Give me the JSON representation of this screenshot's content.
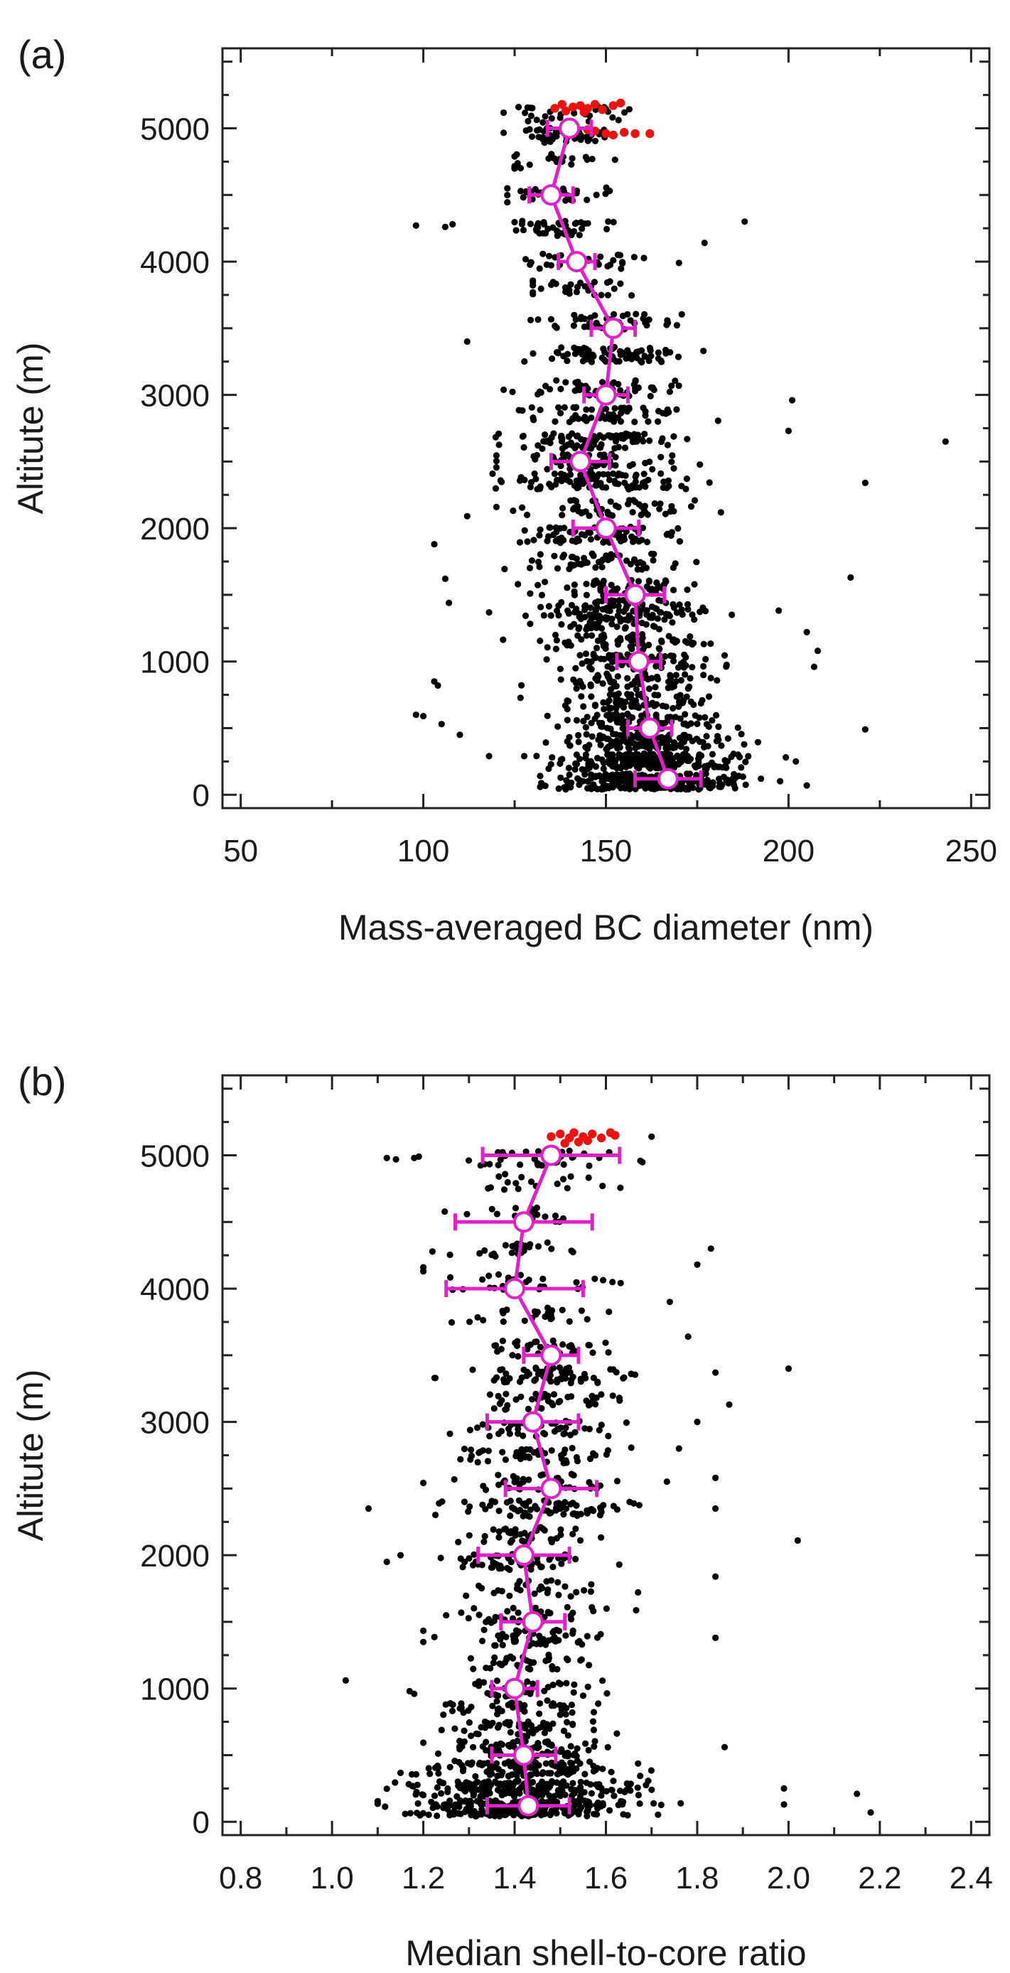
{
  "colors": {
    "scatter": "#000000",
    "highlight": "#ee1111",
    "profile": "#e020c8",
    "axis": "#222222"
  },
  "chart_data": [
    {
      "type": "scatter",
      "panel_label": "(a)",
      "xlabel": "Mass-averaged BC diameter (nm)",
      "ylabel": "Altitute (m)",
      "xlim": [
        45,
        255
      ],
      "ylim": [
        -100,
        5600
      ],
      "xticks": [
        50,
        100,
        150,
        200,
        250
      ],
      "yticks": [
        0,
        1000,
        2000,
        3000,
        4000,
        5000
      ],
      "grid": false,
      "scatter_layers": [
        {
          "y": 100,
          "center": 163,
          "spread": 12,
          "min": 132,
          "max": 200,
          "count": 260
        },
        {
          "y": 250,
          "center": 162,
          "spread": 12,
          "min": 125,
          "max": 202,
          "count": 200
        },
        {
          "y": 400,
          "center": 161,
          "spread": 12,
          "min": 120,
          "max": 200,
          "count": 130
        },
        {
          "y": 550,
          "center": 160,
          "spread": 12,
          "min": 120,
          "max": 195,
          "count": 90
        },
        {
          "y": 700,
          "center": 159,
          "spread": 11,
          "min": 125,
          "max": 190,
          "count": 70
        },
        {
          "y": 850,
          "center": 158,
          "spread": 11,
          "min": 125,
          "max": 190,
          "count": 65
        },
        {
          "y": 1000,
          "center": 158,
          "spread": 12,
          "min": 120,
          "max": 195,
          "count": 70
        },
        {
          "y": 1150,
          "center": 157,
          "spread": 12,
          "min": 120,
          "max": 195,
          "count": 65
        },
        {
          "y": 1300,
          "center": 156,
          "spread": 12,
          "min": 120,
          "max": 195,
          "count": 65
        },
        {
          "y": 1400,
          "center": 155,
          "spread": 13,
          "min": 118,
          "max": 200,
          "count": 80
        },
        {
          "y": 1550,
          "center": 153,
          "spread": 12,
          "min": 120,
          "max": 195,
          "count": 60
        },
        {
          "y": 1750,
          "center": 151,
          "spread": 12,
          "min": 122,
          "max": 190,
          "count": 55
        },
        {
          "y": 1950,
          "center": 150,
          "spread": 12,
          "min": 120,
          "max": 190,
          "count": 75
        },
        {
          "y": 2150,
          "center": 149,
          "spread": 12,
          "min": 120,
          "max": 190,
          "count": 55
        },
        {
          "y": 2350,
          "center": 147,
          "spread": 13,
          "min": 118,
          "max": 185,
          "count": 95
        },
        {
          "y": 2500,
          "center": 146,
          "spread": 12,
          "min": 120,
          "max": 185,
          "count": 55
        },
        {
          "y": 2650,
          "center": 147,
          "spread": 13,
          "min": 118,
          "max": 185,
          "count": 85
        },
        {
          "y": 2850,
          "center": 149,
          "spread": 12,
          "min": 122,
          "max": 185,
          "count": 60
        },
        {
          "y": 3050,
          "center": 150,
          "spread": 12,
          "min": 122,
          "max": 185,
          "count": 55
        },
        {
          "y": 3300,
          "center": 151,
          "spread": 11,
          "min": 125,
          "max": 180,
          "count": 75
        },
        {
          "y": 3550,
          "center": 150,
          "spread": 10,
          "min": 128,
          "max": 175,
          "count": 45
        },
        {
          "y": 3800,
          "center": 146,
          "spread": 9,
          "min": 130,
          "max": 170,
          "count": 30
        },
        {
          "y": 4000,
          "center": 143,
          "spread": 9,
          "min": 128,
          "max": 165,
          "count": 35
        },
        {
          "y": 4250,
          "center": 138,
          "spread": 8,
          "min": 125,
          "max": 160,
          "count": 40
        },
        {
          "y": 4500,
          "center": 135,
          "spread": 8,
          "min": 123,
          "max": 152,
          "count": 30
        },
        {
          "y": 4750,
          "center": 137,
          "spread": 8,
          "min": 125,
          "max": 155,
          "count": 25
        },
        {
          "y": 4950,
          "center": 138,
          "spread": 9,
          "min": 122,
          "max": 158,
          "count": 45
        },
        {
          "y": 5100,
          "center": 139,
          "spread": 9,
          "min": 122,
          "max": 160,
          "count": 30
        }
      ],
      "scatter_outliers": [
        {
          "x": 98,
          "y": 600
        },
        {
          "x": 100,
          "y": 590
        },
        {
          "x": 103,
          "y": 850
        },
        {
          "x": 104,
          "y": 820
        },
        {
          "x": 105,
          "y": 530
        },
        {
          "x": 106,
          "y": 1620
        },
        {
          "x": 107,
          "y": 1440
        },
        {
          "x": 103,
          "y": 1880
        },
        {
          "x": 112,
          "y": 2090
        },
        {
          "x": 98,
          "y": 4270
        },
        {
          "x": 106,
          "y": 4260
        },
        {
          "x": 108,
          "y": 4280
        },
        {
          "x": 112,
          "y": 3400
        },
        {
          "x": 110,
          "y": 450
        },
        {
          "x": 118,
          "y": 290
        },
        {
          "x": 243,
          "y": 2650
        },
        {
          "x": 221,
          "y": 2340
        },
        {
          "x": 221,
          "y": 490
        },
        {
          "x": 217,
          "y": 1630
        },
        {
          "x": 208,
          "y": 1080
        },
        {
          "x": 207,
          "y": 960
        },
        {
          "x": 205,
          "y": 1220
        },
        {
          "x": 201,
          "y": 2960
        },
        {
          "x": 200,
          "y": 2730
        },
        {
          "x": 188,
          "y": 4300
        },
        {
          "x": 177,
          "y": 4140
        },
        {
          "x": 170,
          "y": 3990
        },
        {
          "x": 205,
          "y": 70
        },
        {
          "x": 202,
          "y": 250
        }
      ],
      "highlight_points": [
        {
          "x": 136,
          "y": 5150
        },
        {
          "x": 138,
          "y": 5180
        },
        {
          "x": 139,
          "y": 5130
        },
        {
          "x": 141,
          "y": 5160
        },
        {
          "x": 143,
          "y": 5170
        },
        {
          "x": 145,
          "y": 5150
        },
        {
          "x": 147,
          "y": 5180
        },
        {
          "x": 149,
          "y": 5140
        },
        {
          "x": 152,
          "y": 5170
        },
        {
          "x": 154,
          "y": 5190
        },
        {
          "x": 145,
          "y": 4990
        },
        {
          "x": 147,
          "y": 4980
        },
        {
          "x": 150,
          "y": 4960
        },
        {
          "x": 152,
          "y": 4950
        },
        {
          "x": 155,
          "y": 4970
        },
        {
          "x": 158,
          "y": 4960
        },
        {
          "x": 162,
          "y": 4960
        },
        {
          "x": 144,
          "y": 5120
        }
      ],
      "profile": {
        "y": [
          120,
          500,
          1000,
          1500,
          2000,
          2500,
          3000,
          3500,
          4000,
          4500,
          5000
        ],
        "x": [
          167,
          162,
          159,
          158,
          150,
          143,
          150,
          152,
          142,
          135,
          140
        ],
        "x_err": [
          9,
          6,
          6,
          8,
          9,
          8,
          6,
          6,
          5,
          6,
          6
        ]
      }
    },
    {
      "type": "scatter",
      "panel_label": "(b)",
      "xlabel": "Median shell-to-core ratio",
      "ylabel": "Altitute (m)",
      "xlim": [
        0.76,
        2.44
      ],
      "ylim": [
        -100,
        5600
      ],
      "xticks": [
        0.8,
        1.0,
        1.2,
        1.4,
        1.6,
        1.8,
        2.0,
        2.2,
        2.4
      ],
      "xtick_labels": [
        "0.8",
        "1.0",
        "1.2",
        "1.4",
        "1.6",
        "1.8",
        "2.0",
        "2.2",
        "2.4"
      ],
      "yticks": [
        0,
        1000,
        2000,
        3000,
        4000,
        5000
      ],
      "grid": false,
      "scatter_layers": [
        {
          "y": 100,
          "center": 1.42,
          "spread": 0.12,
          "min": 1.1,
          "max": 1.85,
          "count": 250
        },
        {
          "y": 250,
          "center": 1.42,
          "spread": 0.12,
          "min": 1.12,
          "max": 1.8,
          "count": 190
        },
        {
          "y": 400,
          "center": 1.42,
          "spread": 0.1,
          "min": 1.15,
          "max": 1.75,
          "count": 120
        },
        {
          "y": 550,
          "center": 1.42,
          "spread": 0.09,
          "min": 1.2,
          "max": 1.7,
          "count": 80
        },
        {
          "y": 700,
          "center": 1.41,
          "spread": 0.08,
          "min": 1.22,
          "max": 1.65,
          "count": 50
        },
        {
          "y": 850,
          "center": 1.4,
          "spread": 0.08,
          "min": 1.2,
          "max": 1.62,
          "count": 45
        },
        {
          "y": 1000,
          "center": 1.41,
          "spread": 0.08,
          "min": 1.2,
          "max": 1.62,
          "count": 40
        },
        {
          "y": 1200,
          "center": 1.42,
          "spread": 0.08,
          "min": 1.22,
          "max": 1.65,
          "count": 35
        },
        {
          "y": 1380,
          "center": 1.44,
          "spread": 0.09,
          "min": 1.2,
          "max": 1.7,
          "count": 55
        },
        {
          "y": 1550,
          "center": 1.44,
          "spread": 0.08,
          "min": 1.25,
          "max": 1.7,
          "count": 35
        },
        {
          "y": 1750,
          "center": 1.43,
          "spread": 0.08,
          "min": 1.22,
          "max": 1.7,
          "count": 30
        },
        {
          "y": 1950,
          "center": 1.42,
          "spread": 0.09,
          "min": 1.15,
          "max": 1.72,
          "count": 55
        },
        {
          "y": 2150,
          "center": 1.44,
          "spread": 0.09,
          "min": 1.2,
          "max": 1.7,
          "count": 40
        },
        {
          "y": 2350,
          "center": 1.47,
          "spread": 0.1,
          "min": 1.15,
          "max": 1.8,
          "count": 75
        },
        {
          "y": 2550,
          "center": 1.47,
          "spread": 0.09,
          "min": 1.2,
          "max": 1.75,
          "count": 45
        },
        {
          "y": 2750,
          "center": 1.46,
          "spread": 0.09,
          "min": 1.2,
          "max": 1.75,
          "count": 50
        },
        {
          "y": 2950,
          "center": 1.45,
          "spread": 0.09,
          "min": 1.2,
          "max": 1.75,
          "count": 45
        },
        {
          "y": 3150,
          "center": 1.46,
          "spread": 0.09,
          "min": 1.22,
          "max": 1.75,
          "count": 40
        },
        {
          "y": 3350,
          "center": 1.48,
          "spread": 0.09,
          "min": 1.22,
          "max": 1.75,
          "count": 70
        },
        {
          "y": 3550,
          "center": 1.46,
          "spread": 0.08,
          "min": 1.25,
          "max": 1.7,
          "count": 35
        },
        {
          "y": 3800,
          "center": 1.42,
          "spread": 0.08,
          "min": 1.22,
          "max": 1.68,
          "count": 25
        },
        {
          "y": 4050,
          "center": 1.41,
          "spread": 0.08,
          "min": 1.2,
          "max": 1.68,
          "count": 30
        },
        {
          "y": 4300,
          "center": 1.42,
          "spread": 0.08,
          "min": 1.22,
          "max": 1.68,
          "count": 25
        },
        {
          "y": 4550,
          "center": 1.43,
          "spread": 0.08,
          "min": 1.22,
          "max": 1.65,
          "count": 20
        },
        {
          "y": 4800,
          "center": 1.45,
          "spread": 0.08,
          "min": 1.25,
          "max": 1.65,
          "count": 18
        },
        {
          "y": 4980,
          "center": 1.45,
          "spread": 0.09,
          "min": 1.25,
          "max": 1.68,
          "count": 40
        }
      ],
      "scatter_outliers": [
        {
          "x": 1.12,
          "y": 4980
        },
        {
          "x": 1.14,
          "y": 4970
        },
        {
          "x": 1.18,
          "y": 4980
        },
        {
          "x": 1.19,
          "y": 4990
        },
        {
          "x": 1.03,
          "y": 1060
        },
        {
          "x": 1.18,
          "y": 960
        },
        {
          "x": 1.17,
          "y": 980
        },
        {
          "x": 1.08,
          "y": 2350
        },
        {
          "x": 1.12,
          "y": 1950
        },
        {
          "x": 1.15,
          "y": 2000
        },
        {
          "x": 1.2,
          "y": 4130
        },
        {
          "x": 1.2,
          "y": 4160
        },
        {
          "x": 2.0,
          "y": 3400
        },
        {
          "x": 2.02,
          "y": 2110
        },
        {
          "x": 1.99,
          "y": 250
        },
        {
          "x": 1.99,
          "y": 130
        },
        {
          "x": 2.15,
          "y": 210
        },
        {
          "x": 2.18,
          "y": 70
        },
        {
          "x": 1.87,
          "y": 3130
        },
        {
          "x": 1.84,
          "y": 3370
        },
        {
          "x": 1.86,
          "y": 560
        },
        {
          "x": 1.84,
          "y": 2350
        },
        {
          "x": 1.84,
          "y": 2580
        },
        {
          "x": 1.84,
          "y": 1840
        },
        {
          "x": 1.84,
          "y": 1380
        },
        {
          "x": 1.83,
          "y": 4300
        },
        {
          "x": 1.8,
          "y": 4180
        },
        {
          "x": 1.78,
          "y": 3640
        },
        {
          "x": 1.74,
          "y": 3900
        },
        {
          "x": 1.7,
          "y": 5140
        },
        {
          "x": 1.8,
          "y": 3000
        },
        {
          "x": 1.76,
          "y": 2800
        }
      ],
      "highlight_points": [
        {
          "x": 1.48,
          "y": 5140
        },
        {
          "x": 1.5,
          "y": 5160
        },
        {
          "x": 1.52,
          "y": 5130
        },
        {
          "x": 1.53,
          "y": 5170
        },
        {
          "x": 1.55,
          "y": 5140
        },
        {
          "x": 1.57,
          "y": 5160
        },
        {
          "x": 1.59,
          "y": 5130
        },
        {
          "x": 1.61,
          "y": 5170
        },
        {
          "x": 1.62,
          "y": 5150
        },
        {
          "x": 1.54,
          "y": 5100
        },
        {
          "x": 1.56,
          "y": 5110
        },
        {
          "x": 1.51,
          "y": 5090
        }
      ],
      "profile": {
        "y": [
          120,
          500,
          1000,
          1500,
          2000,
          2500,
          3000,
          3500,
          4000,
          4500,
          5000
        ],
        "x": [
          1.43,
          1.42,
          1.4,
          1.44,
          1.42,
          1.48,
          1.44,
          1.48,
          1.4,
          1.42,
          1.48
        ],
        "x_err": [
          0.09,
          0.07,
          0.05,
          0.07,
          0.1,
          0.1,
          0.1,
          0.06,
          0.15,
          0.15,
          0.15
        ]
      }
    }
  ]
}
